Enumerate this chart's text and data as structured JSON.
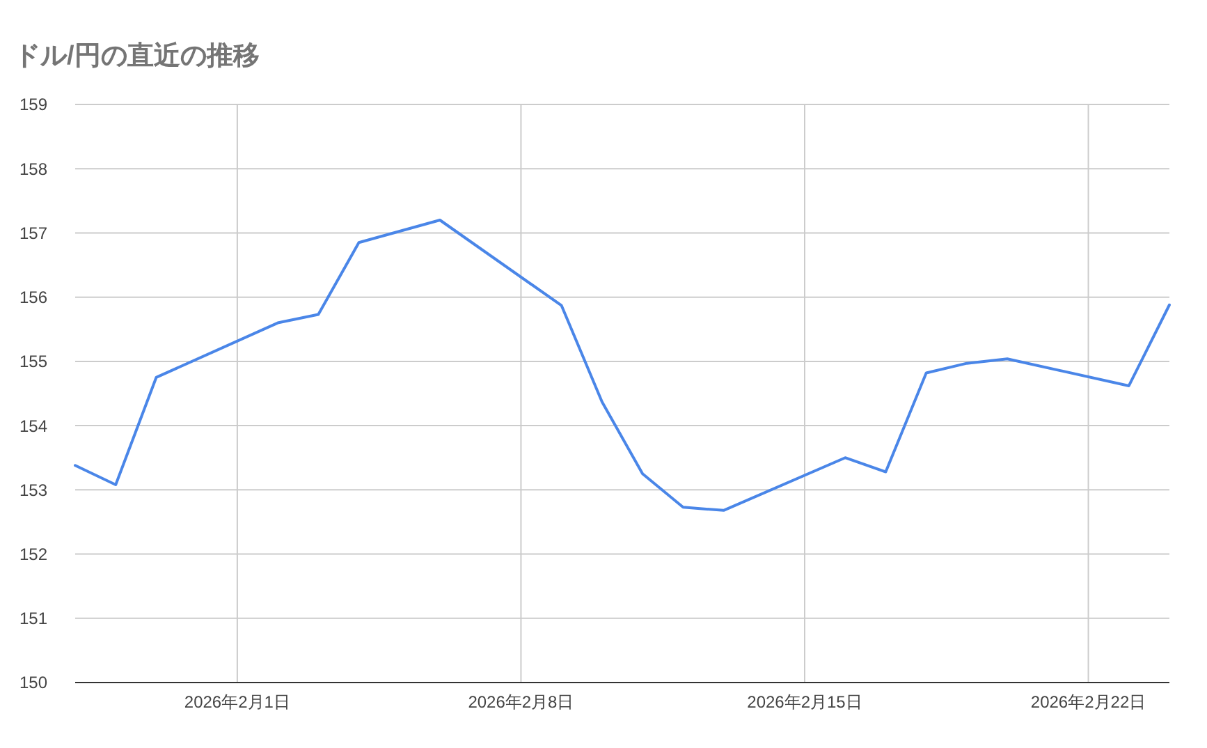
{
  "chart_data": {
    "type": "line",
    "title": "ドル/円の直近の推移",
    "x": [
      "2026-01-28",
      "2026-01-29",
      "2026-01-30",
      "2026-02-02",
      "2026-02-03",
      "2026-02-04",
      "2026-02-06",
      "2026-02-09",
      "2026-02-10",
      "2026-02-11",
      "2026-02-12",
      "2026-02-13",
      "2026-02-16",
      "2026-02-17",
      "2026-02-18",
      "2026-02-19",
      "2026-02-20",
      "2026-02-23",
      "2026-02-24"
    ],
    "series": [
      {
        "color": "#4a86e8",
        "values": [
          153.38,
          153.08,
          154.75,
          155.6,
          155.73,
          156.85,
          157.2,
          155.87,
          154.37,
          153.25,
          152.73,
          152.68,
          153.5,
          153.28,
          154.82,
          154.97,
          155.04,
          154.62,
          155.88
        ]
      }
    ],
    "xlim": [
      "2026-01-28",
      "2026-02-24"
    ],
    "xticks": [
      {
        "value": "2026-02-01",
        "label": "2026年2月1日"
      },
      {
        "value": "2026-02-08",
        "label": "2026年2月8日"
      },
      {
        "value": "2026-02-15",
        "label": "2026年2月15日"
      },
      {
        "value": "2026-02-22",
        "label": "2026年2月22日"
      }
    ],
    "ylim": [
      150,
      159
    ],
    "yticks": [
      150,
      151,
      152,
      153,
      154,
      155,
      156,
      157,
      158,
      159
    ],
    "grid": true,
    "marker": "none",
    "line_style": "solid"
  }
}
